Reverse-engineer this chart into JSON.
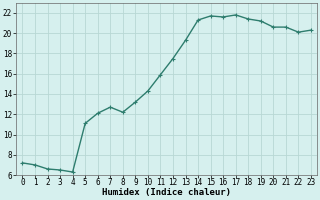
{
  "x": [
    0,
    1,
    2,
    3,
    4,
    5,
    6,
    7,
    8,
    9,
    10,
    11,
    12,
    13,
    14,
    15,
    16,
    17,
    18,
    19,
    20,
    21,
    22,
    23
  ],
  "y": [
    7.2,
    7.0,
    6.6,
    6.5,
    6.3,
    11.1,
    12.1,
    12.7,
    12.2,
    13.2,
    14.3,
    15.9,
    17.5,
    19.3,
    21.3,
    21.7,
    21.6,
    21.8,
    21.4,
    21.2,
    20.6,
    20.6,
    20.1,
    20.3
  ],
  "line_color": "#2e7d6e",
  "marker": "+",
  "markersize": 3,
  "linewidth": 1.0,
  "markeredgewidth": 0.8,
  "xlabel": "Humidex (Indice chaleur)",
  "xlim": [
    -0.5,
    23.5
  ],
  "ylim": [
    6,
    23
  ],
  "yticks": [
    6,
    8,
    10,
    12,
    14,
    16,
    18,
    20,
    22
  ],
  "xticks": [
    0,
    1,
    2,
    3,
    4,
    5,
    6,
    7,
    8,
    9,
    10,
    11,
    12,
    13,
    14,
    15,
    16,
    17,
    18,
    19,
    20,
    21,
    22,
    23
  ],
  "bg_color": "#d6f0ee",
  "grid_color": "#b8d8d4",
  "xlabel_fontsize": 6.5,
  "tick_fontsize": 5.5
}
